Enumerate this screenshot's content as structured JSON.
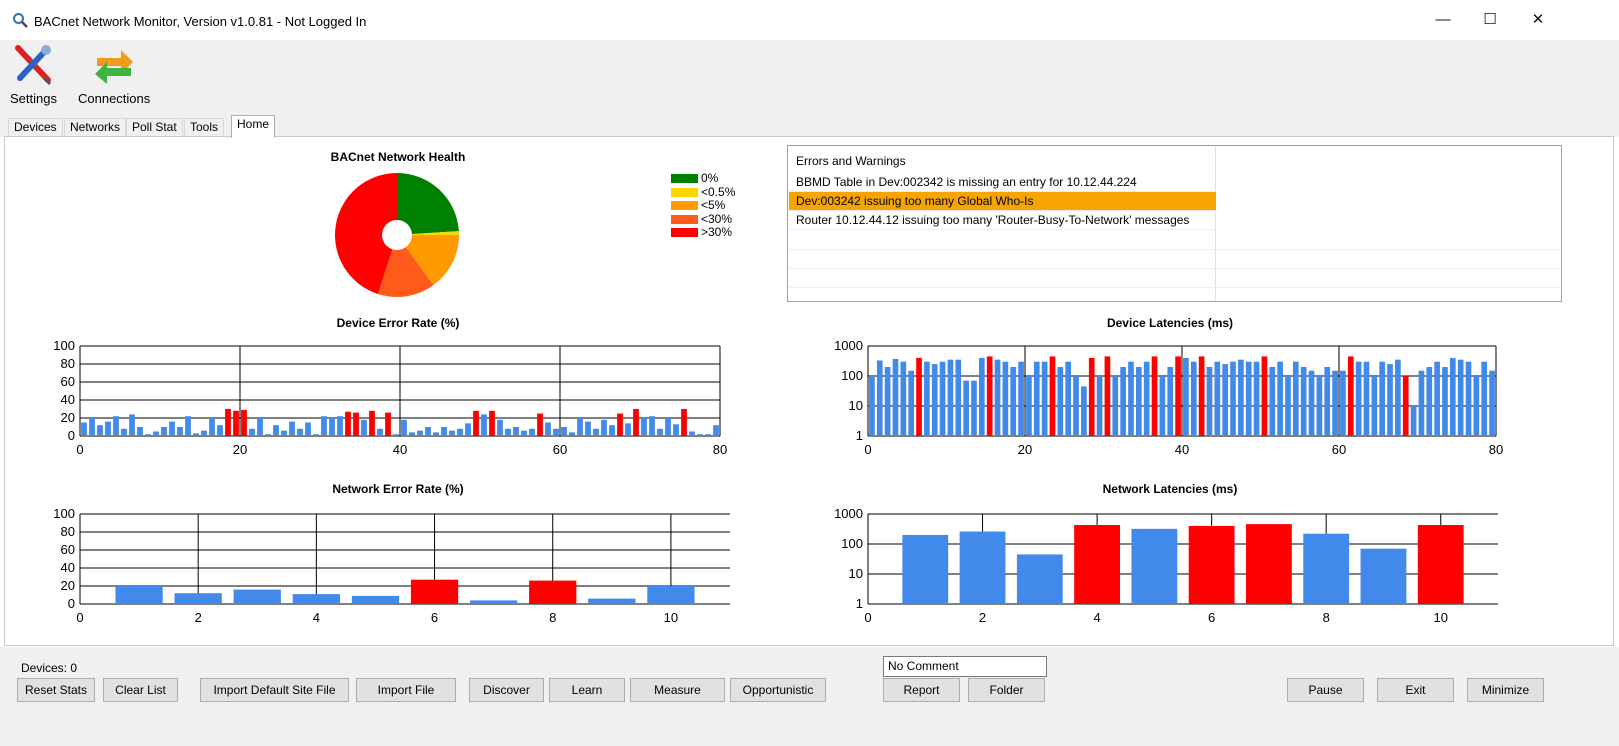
{
  "window": {
    "title": "BACnet Network Monitor, Version v1.0.81 - Not Logged In",
    "controls": {
      "minimize": "—",
      "maximize": "☐",
      "close": "✕"
    }
  },
  "toolbar": {
    "settings_label": "Settings",
    "connections_label": "Connections"
  },
  "tabs": [
    {
      "label": "Devices",
      "active": false
    },
    {
      "label": "Networks",
      "active": false
    },
    {
      "label": "Poll Stat",
      "active": false
    },
    {
      "label": "Tools",
      "active": false
    },
    {
      "label": "Home",
      "active": true
    }
  ],
  "health": {
    "title": "BACnet Network Health",
    "legend": [
      {
        "label": "0%",
        "color": "#008000"
      },
      {
        "label": "<0.5%",
        "color": "#ffd700"
      },
      {
        "label": "<5%",
        "color": "#ff9a00"
      },
      {
        "label": "<30%",
        "color": "#ff5a1a"
      },
      {
        "label": ">30%",
        "color": "#ff0000"
      }
    ]
  },
  "errors": {
    "header": "Errors and Warnings",
    "rows": [
      {
        "text": "BBMD Table in Dev:002342 is missing an entry for 10.12.44.224",
        "highlight": false
      },
      {
        "text": "Dev:003242 issuing too many Global Who-Is",
        "highlight": true
      },
      {
        "text": "Router 10.12.44.12 issuing too many 'Router-Busy-To-Network' messages",
        "highlight": false
      }
    ]
  },
  "chart_data": [
    {
      "id": "health",
      "type": "pie",
      "title": "BACnet Network Health",
      "labels": [
        "0%",
        "<0.5%",
        "<5%",
        "<30%",
        ">30%"
      ],
      "values": [
        24,
        1,
        15,
        15,
        45
      ],
      "colors": [
        "#008000",
        "#ffd700",
        "#ff9a00",
        "#ff5a1a",
        "#ff0000"
      ]
    },
    {
      "id": "dev_err",
      "type": "bar",
      "title": "Device Error Rate (%)",
      "xlim": [
        0,
        80
      ],
      "ylim": [
        0,
        100
      ],
      "xticks": [
        0,
        20,
        40,
        60,
        80
      ],
      "yticks": [
        0,
        20,
        40,
        60,
        80,
        100
      ],
      "x": [
        1,
        2,
        3,
        4,
        5,
        6,
        7,
        8,
        9,
        10,
        11,
        12,
        13,
        14,
        15,
        16,
        17,
        18,
        19,
        20,
        21,
        22,
        23,
        24,
        25,
        26,
        27,
        28,
        29,
        30,
        31,
        32,
        33,
        34,
        35,
        36,
        37,
        38,
        39,
        40,
        41,
        42,
        43,
        44,
        45,
        46,
        47,
        48,
        49,
        50,
        51,
        52,
        53,
        54,
        55,
        56,
        57,
        58,
        59,
        60,
        61,
        62,
        63,
        64,
        65,
        66,
        67,
        68,
        69,
        70,
        71,
        72,
        73,
        74,
        75,
        76,
        77,
        78,
        79,
        80
      ],
      "values": [
        15,
        20,
        12,
        16,
        22,
        8,
        24,
        10,
        2,
        5,
        10,
        16,
        10,
        22,
        3,
        6,
        20,
        12,
        30,
        28,
        29,
        8,
        20,
        2,
        12,
        6,
        16,
        8,
        15,
        2,
        22,
        20,
        22,
        27,
        26,
        18,
        28,
        8,
        26,
        2,
        18,
        4,
        6,
        10,
        4,
        10,
        6,
        8,
        14,
        28,
        24,
        28,
        18,
        8,
        10,
        6,
        8,
        25,
        15,
        8,
        10,
        4,
        20,
        16,
        8,
        18,
        12,
        25,
        14,
        30,
        20,
        22,
        8,
        20,
        13,
        30,
        5,
        2,
        2,
        12
      ],
      "colors": [
        "#4289ec",
        "#4289ec",
        "#4289ec",
        "#4289ec",
        "#4289ec",
        "#4289ec",
        "#4289ec",
        "#4289ec",
        "#4289ec",
        "#4289ec",
        "#4289ec",
        "#4289ec",
        "#4289ec",
        "#4289ec",
        "#4289ec",
        "#4289ec",
        "#4289ec",
        "#4289ec",
        "#ff0000",
        "#ff0000",
        "#ff0000",
        "#4289ec",
        "#4289ec",
        "#4289ec",
        "#4289ec",
        "#4289ec",
        "#4289ec",
        "#4289ec",
        "#4289ec",
        "#4289ec",
        "#4289ec",
        "#4289ec",
        "#4289ec",
        "#ff0000",
        "#ff0000",
        "#4289ec",
        "#ff0000",
        "#4289ec",
        "#ff0000",
        "#4289ec",
        "#4289ec",
        "#4289ec",
        "#4289ec",
        "#4289ec",
        "#4289ec",
        "#4289ec",
        "#4289ec",
        "#4289ec",
        "#4289ec",
        "#ff0000",
        "#4289ec",
        "#ff0000",
        "#4289ec",
        "#4289ec",
        "#4289ec",
        "#4289ec",
        "#4289ec",
        "#ff0000",
        "#4289ec",
        "#4289ec",
        "#4289ec",
        "#4289ec",
        "#4289ec",
        "#4289ec",
        "#4289ec",
        "#4289ec",
        "#4289ec",
        "#ff0000",
        "#4289ec",
        "#ff0000",
        "#4289ec",
        "#4289ec",
        "#4289ec",
        "#4289ec",
        "#4289ec",
        "#ff0000",
        "#4289ec",
        "#4289ec",
        "#4289ec",
        "#4289ec"
      ]
    },
    {
      "id": "dev_lat",
      "type": "bar",
      "title": "Device Latencies (ms)",
      "scale": "log",
      "xlim": [
        0,
        80
      ],
      "ylim": [
        1,
        1000
      ],
      "xticks": [
        0,
        20,
        40,
        60,
        80
      ],
      "yticks": [
        1,
        10,
        100,
        1000
      ],
      "x": [
        1,
        2,
        3,
        4,
        5,
        6,
        7,
        8,
        9,
        10,
        11,
        12,
        13,
        14,
        15,
        16,
        17,
        18,
        19,
        20,
        21,
        22,
        23,
        24,
        25,
        26,
        27,
        28,
        29,
        30,
        31,
        32,
        33,
        34,
        35,
        36,
        37,
        38,
        39,
        40,
        41,
        42,
        43,
        44,
        45,
        46,
        47,
        48,
        49,
        50,
        51,
        52,
        53,
        54,
        55,
        56,
        57,
        58,
        59,
        60,
        61,
        62,
        63,
        64,
        65,
        66,
        67,
        68,
        69,
        70,
        71,
        72,
        73,
        74,
        75,
        76,
        77,
        78,
        79,
        80
      ],
      "values": [
        100,
        330,
        200,
        370,
        300,
        150,
        400,
        300,
        250,
        300,
        350,
        350,
        70,
        70,
        400,
        450,
        350,
        300,
        200,
        300,
        100,
        300,
        300,
        450,
        200,
        300,
        100,
        45,
        400,
        100,
        450,
        100,
        200,
        300,
        200,
        300,
        450,
        100,
        200,
        450,
        400,
        300,
        450,
        200,
        300,
        250,
        300,
        350,
        300,
        300,
        450,
        200,
        300,
        100,
        300,
        200,
        150,
        100,
        200,
        150,
        150,
        450,
        300,
        300,
        100,
        300,
        250,
        350,
        100,
        10,
        150,
        200,
        300,
        200,
        400,
        350,
        300,
        100,
        300,
        150
      ],
      "colors": [
        "#4289ec",
        "#4289ec",
        "#4289ec",
        "#4289ec",
        "#4289ec",
        "#4289ec",
        "#ff0000",
        "#4289ec",
        "#4289ec",
        "#4289ec",
        "#4289ec",
        "#4289ec",
        "#4289ec",
        "#4289ec",
        "#4289ec",
        "#ff0000",
        "#4289ec",
        "#4289ec",
        "#4289ec",
        "#4289ec",
        "#4289ec",
        "#4289ec",
        "#4289ec",
        "#ff0000",
        "#4289ec",
        "#4289ec",
        "#4289ec",
        "#4289ec",
        "#ff0000",
        "#4289ec",
        "#ff0000",
        "#4289ec",
        "#4289ec",
        "#4289ec",
        "#4289ec",
        "#4289ec",
        "#ff0000",
        "#4289ec",
        "#4289ec",
        "#ff0000",
        "#4289ec",
        "#4289ec",
        "#ff0000",
        "#4289ec",
        "#4289ec",
        "#4289ec",
        "#4289ec",
        "#4289ec",
        "#4289ec",
        "#4289ec",
        "#ff0000",
        "#4289ec",
        "#4289ec",
        "#4289ec",
        "#4289ec",
        "#4289ec",
        "#4289ec",
        "#4289ec",
        "#4289ec",
        "#4289ec",
        "#4289ec",
        "#ff0000",
        "#4289ec",
        "#4289ec",
        "#4289ec",
        "#4289ec",
        "#4289ec",
        "#4289ec",
        "#ff0000",
        "#4289ec",
        "#4289ec",
        "#4289ec",
        "#4289ec",
        "#4289ec",
        "#4289ec",
        "#4289ec",
        "#4289ec",
        "#4289ec",
        "#4289ec",
        "#4289ec"
      ]
    },
    {
      "id": "net_err",
      "type": "bar",
      "title": "Network Error Rate (%)",
      "xlim": [
        0,
        11
      ],
      "ylim": [
        0,
        100
      ],
      "xticks": [
        0,
        2,
        4,
        6,
        8,
        10
      ],
      "yticks": [
        0,
        20,
        40,
        60,
        80,
        100
      ],
      "x": [
        1,
        2,
        3,
        4,
        5,
        6,
        7,
        8,
        9,
        10
      ],
      "values": [
        20,
        12,
        16,
        11,
        9,
        27,
        4,
        26,
        6,
        20
      ],
      "colors": [
        "#4289ec",
        "#4289ec",
        "#4289ec",
        "#4289ec",
        "#4289ec",
        "#ff0000",
        "#4289ec",
        "#ff0000",
        "#4289ec",
        "#4289ec"
      ]
    },
    {
      "id": "net_lat",
      "type": "bar",
      "title": "Network Latencies (ms)",
      "scale": "log",
      "xlim": [
        0,
        11
      ],
      "ylim": [
        1,
        1000
      ],
      "xticks": [
        0,
        2,
        4,
        6,
        8,
        10
      ],
      "yticks": [
        1,
        10,
        100,
        1000
      ],
      "x": [
        1,
        2,
        3,
        4,
        5,
        6,
        7,
        8,
        9,
        10
      ],
      "values": [
        200,
        260,
        45,
        430,
        320,
        400,
        460,
        220,
        70,
        430
      ],
      "colors": [
        "#4289ec",
        "#4289ec",
        "#4289ec",
        "#ff0000",
        "#4289ec",
        "#ff0000",
        "#ff0000",
        "#4289ec",
        "#4289ec",
        "#ff0000"
      ]
    }
  ],
  "footer": {
    "devices_label": "Devices: 0",
    "comment_value": "No Comment",
    "buttons": {
      "reset_stats": "Reset Stats",
      "clear_list": "Clear List",
      "import_default": "Import Default Site File",
      "import_file": "Import File",
      "discover": "Discover",
      "learn": "Learn",
      "measure": "Measure",
      "opportunistic": "Opportunistic",
      "report": "Report",
      "folder": "Folder",
      "pause": "Pause",
      "exit": "Exit",
      "minimize": "Minimize"
    }
  }
}
